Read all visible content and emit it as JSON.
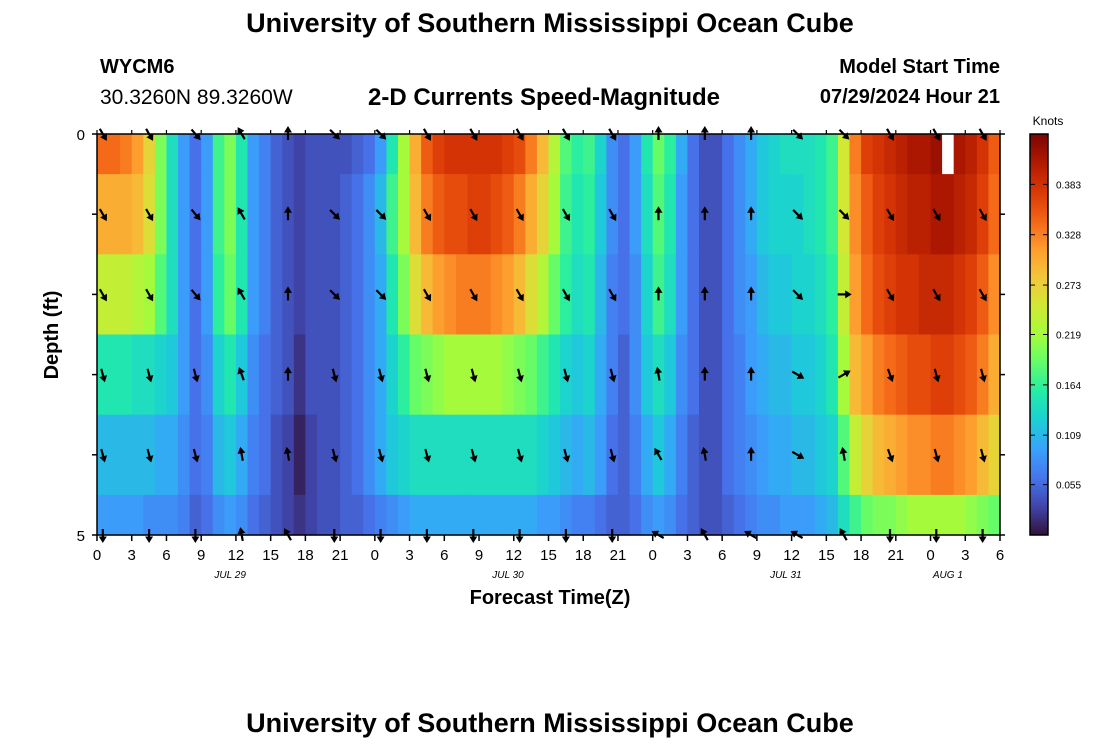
{
  "header": {
    "title": "University of Southern Mississippi Ocean Cube",
    "station_id": "WYCM6",
    "coordinates": "30.3260N  89.3260W",
    "subtitle": "2-D Currents Speed-Magnitude",
    "model_start_label": "Model Start Time",
    "model_start_value": "07/29/2024 Hour 21"
  },
  "footer": {
    "title": "University of Southern Mississippi Ocean Cube"
  },
  "colors": {
    "scale": [
      "#30123b",
      "#4145ab",
      "#4675ed",
      "#39a2fc",
      "#1bcfd4",
      "#24eca6",
      "#61fc6c",
      "#a4fc3b",
      "#d1e834",
      "#f3c63a",
      "#fe9b2d",
      "#f36315",
      "#d93806",
      "#b11901",
      "#7a0402"
    ],
    "arrow": "#000000",
    "gap": "#ffffff"
  },
  "chart_data": {
    "type": "heatmap",
    "title": "2-D Currents Speed-Magnitude",
    "xlabel": "Forecast Time(Z)",
    "ylabel": "Depth (ft)",
    "units": "Knots",
    "xlim": [
      0,
      78
    ],
    "ylim": [
      0,
      5
    ],
    "x_ticks": [
      0,
      3,
      6,
      9,
      12,
      15,
      18,
      21,
      24,
      27,
      30,
      33,
      36,
      39,
      42,
      45,
      48,
      51,
      54,
      57,
      60,
      63,
      66,
      69,
      72,
      75,
      78
    ],
    "x_tick_labels": [
      "0",
      "3",
      "6",
      "9",
      "12",
      "15",
      "18",
      "21",
      "0",
      "3",
      "6",
      "9",
      "12",
      "15",
      "18",
      "21",
      "0",
      "3",
      "6",
      "9",
      "12",
      "15",
      "18",
      "21",
      "0",
      "3",
      "6"
    ],
    "y_ticks": [
      0,
      5
    ],
    "y_tick_labels": [
      "0",
      "5"
    ],
    "date_labels": [
      {
        "x": 11.5,
        "label": "JUL 29"
      },
      {
        "x": 35.5,
        "label": "JUL 30"
      },
      {
        "x": 59.5,
        "label": "JUL 31"
      },
      {
        "x": 73.5,
        "label": "AUG 1"
      }
    ],
    "colorbar": {
      "min": 0.0,
      "max": 0.438,
      "ticks": [
        0.055,
        0.109,
        0.164,
        0.219,
        0.273,
        0.328,
        0.383
      ],
      "tick_labels": [
        "0.055",
        "0.109",
        "0.164",
        "0.219",
        "0.273",
        "0.328",
        "0.383"
      ]
    },
    "depth_bands": [
      0,
      1,
      2,
      3,
      4,
      5
    ],
    "speed_profile_by_band": [
      [
        0.34,
        0.34,
        0.33,
        0.31,
        0.27,
        0.2,
        0.14,
        0.09,
        0.06,
        0.09,
        0.17,
        0.2,
        0.15,
        0.09,
        0.07,
        0.05,
        0.04,
        0.03,
        0.04,
        0.04,
        0.04,
        0.04,
        0.05,
        0.06,
        0.09,
        0.15,
        0.22,
        0.3,
        0.35,
        0.37,
        0.38,
        0.38,
        0.38,
        0.38,
        0.38,
        0.37,
        0.36,
        0.33,
        0.29,
        0.23,
        0.18,
        0.16,
        0.17,
        0.13,
        0.08,
        0.06,
        0.09,
        0.15,
        0.19,
        0.16,
        0.1,
        0.06,
        0.04,
        0.04,
        0.06,
        0.08,
        0.1,
        0.12,
        0.13,
        0.14,
        0.14,
        0.14,
        0.15,
        0.17,
        0.25,
        0.33,
        0.37,
        0.38,
        0.39,
        0.4,
        0.41,
        0.41,
        0.42,
        0.42,
        0.41,
        0.4,
        0.38,
        0.35,
        0.3
      ],
      [
        0.3,
        0.3,
        0.3,
        0.29,
        0.26,
        0.2,
        0.14,
        0.09,
        0.06,
        0.09,
        0.17,
        0.2,
        0.15,
        0.09,
        0.07,
        0.05,
        0.04,
        0.03,
        0.04,
        0.04,
        0.04,
        0.05,
        0.06,
        0.08,
        0.11,
        0.17,
        0.22,
        0.29,
        0.33,
        0.35,
        0.36,
        0.36,
        0.37,
        0.37,
        0.36,
        0.35,
        0.33,
        0.3,
        0.27,
        0.22,
        0.17,
        0.15,
        0.16,
        0.12,
        0.08,
        0.06,
        0.09,
        0.14,
        0.18,
        0.15,
        0.09,
        0.06,
        0.04,
        0.04,
        0.06,
        0.08,
        0.1,
        0.12,
        0.13,
        0.13,
        0.13,
        0.14,
        0.15,
        0.17,
        0.25,
        0.32,
        0.35,
        0.37,
        0.38,
        0.39,
        0.4,
        0.4,
        0.41,
        0.41,
        0.4,
        0.39,
        0.37,
        0.34,
        0.29
      ],
      [
        0.24,
        0.24,
        0.24,
        0.23,
        0.22,
        0.18,
        0.14,
        0.09,
        0.06,
        0.09,
        0.16,
        0.19,
        0.15,
        0.09,
        0.07,
        0.05,
        0.04,
        0.03,
        0.04,
        0.04,
        0.04,
        0.05,
        0.06,
        0.08,
        0.1,
        0.15,
        0.2,
        0.26,
        0.29,
        0.31,
        0.32,
        0.33,
        0.33,
        0.33,
        0.32,
        0.31,
        0.29,
        0.26,
        0.23,
        0.19,
        0.16,
        0.14,
        0.15,
        0.11,
        0.07,
        0.06,
        0.08,
        0.13,
        0.17,
        0.14,
        0.09,
        0.06,
        0.04,
        0.04,
        0.06,
        0.08,
        0.09,
        0.11,
        0.12,
        0.12,
        0.13,
        0.13,
        0.14,
        0.16,
        0.24,
        0.31,
        0.34,
        0.36,
        0.37,
        0.38,
        0.38,
        0.39,
        0.39,
        0.39,
        0.38,
        0.37,
        0.35,
        0.32,
        0.27
      ],
      [
        0.15,
        0.15,
        0.15,
        0.14,
        0.14,
        0.13,
        0.12,
        0.09,
        0.06,
        0.08,
        0.13,
        0.15,
        0.12,
        0.08,
        0.06,
        0.05,
        0.04,
        0.02,
        0.04,
        0.04,
        0.04,
        0.05,
        0.06,
        0.08,
        0.1,
        0.13,
        0.16,
        0.19,
        0.2,
        0.21,
        0.22,
        0.22,
        0.22,
        0.22,
        0.22,
        0.21,
        0.2,
        0.19,
        0.17,
        0.15,
        0.13,
        0.12,
        0.13,
        0.1,
        0.07,
        0.05,
        0.08,
        0.12,
        0.14,
        0.12,
        0.08,
        0.06,
        0.04,
        0.04,
        0.06,
        0.07,
        0.09,
        0.1,
        0.11,
        0.11,
        0.12,
        0.12,
        0.13,
        0.15,
        0.22,
        0.29,
        0.31,
        0.33,
        0.34,
        0.35,
        0.36,
        0.36,
        0.37,
        0.37,
        0.36,
        0.35,
        0.33,
        0.3,
        0.26
      ],
      [
        0.11,
        0.11,
        0.11,
        0.11,
        0.11,
        0.1,
        0.1,
        0.08,
        0.06,
        0.07,
        0.11,
        0.12,
        0.1,
        0.07,
        0.06,
        0.04,
        0.03,
        0.01,
        0.03,
        0.04,
        0.04,
        0.05,
        0.06,
        0.08,
        0.1,
        0.12,
        0.13,
        0.14,
        0.14,
        0.14,
        0.14,
        0.14,
        0.14,
        0.14,
        0.14,
        0.14,
        0.14,
        0.14,
        0.13,
        0.12,
        0.11,
        0.1,
        0.11,
        0.09,
        0.06,
        0.05,
        0.07,
        0.1,
        0.12,
        0.1,
        0.07,
        0.05,
        0.04,
        0.04,
        0.06,
        0.07,
        0.08,
        0.09,
        0.1,
        0.1,
        0.11,
        0.11,
        0.12,
        0.13,
        0.18,
        0.24,
        0.27,
        0.29,
        0.3,
        0.31,
        0.32,
        0.32,
        0.33,
        0.33,
        0.32,
        0.31,
        0.29,
        0.27,
        0.24
      ],
      [
        0.09,
        0.09,
        0.09,
        0.09,
        0.08,
        0.08,
        0.08,
        0.07,
        0.05,
        0.06,
        0.08,
        0.09,
        0.08,
        0.06,
        0.05,
        0.04,
        0.03,
        0.02,
        0.03,
        0.04,
        0.04,
        0.05,
        0.05,
        0.06,
        0.07,
        0.08,
        0.09,
        0.1,
        0.1,
        0.1,
        0.1,
        0.1,
        0.1,
        0.1,
        0.1,
        0.1,
        0.1,
        0.1,
        0.09,
        0.09,
        0.08,
        0.07,
        0.07,
        0.06,
        0.05,
        0.05,
        0.06,
        0.08,
        0.09,
        0.08,
        0.06,
        0.05,
        0.04,
        0.04,
        0.05,
        0.06,
        0.07,
        0.08,
        0.08,
        0.09,
        0.09,
        0.09,
        0.1,
        0.11,
        0.14,
        0.17,
        0.19,
        0.2,
        0.2,
        0.21,
        0.22,
        0.22,
        0.22,
        0.22,
        0.22,
        0.21,
        0.2,
        0.19,
        0.18
      ]
    ],
    "vector_depths": [
      0,
      1,
      2,
      3,
      4,
      5
    ],
    "vector_times": [
      0,
      4,
      8,
      12,
      16,
      20,
      24,
      28,
      32,
      36,
      40,
      44,
      48,
      52,
      56,
      60,
      64,
      68,
      72,
      76
    ],
    "vector_directions_deg": [
      [
        150,
        150,
        140,
        330,
        0,
        135,
        135,
        150,
        150,
        150,
        150,
        150,
        0,
        0,
        0,
        135,
        135,
        150,
        150,
        150
      ],
      [
        150,
        150,
        140,
        330,
        0,
        135,
        135,
        150,
        150,
        150,
        150,
        150,
        0,
        0,
        0,
        135,
        135,
        150,
        150,
        150
      ],
      [
        150,
        150,
        140,
        330,
        0,
        135,
        135,
        150,
        150,
        150,
        150,
        150,
        0,
        0,
        0,
        135,
        90,
        150,
        150,
        150
      ],
      [
        165,
        165,
        165,
        340,
        0,
        165,
        165,
        165,
        165,
        165,
        165,
        165,
        350,
        0,
        0,
        120,
        60,
        160,
        165,
        165
      ],
      [
        165,
        165,
        165,
        350,
        350,
        165,
        165,
        165,
        165,
        165,
        165,
        165,
        330,
        350,
        0,
        120,
        350,
        160,
        165,
        165
      ],
      [
        180,
        180,
        180,
        350,
        330,
        180,
        180,
        180,
        180,
        180,
        180,
        180,
        300,
        330,
        300,
        300,
        330,
        180,
        180,
        180
      ]
    ],
    "missing_cells": [
      {
        "x_from": 73,
        "x_to": 74,
        "depth_from": 0,
        "depth_to": 0.5
      }
    ]
  }
}
